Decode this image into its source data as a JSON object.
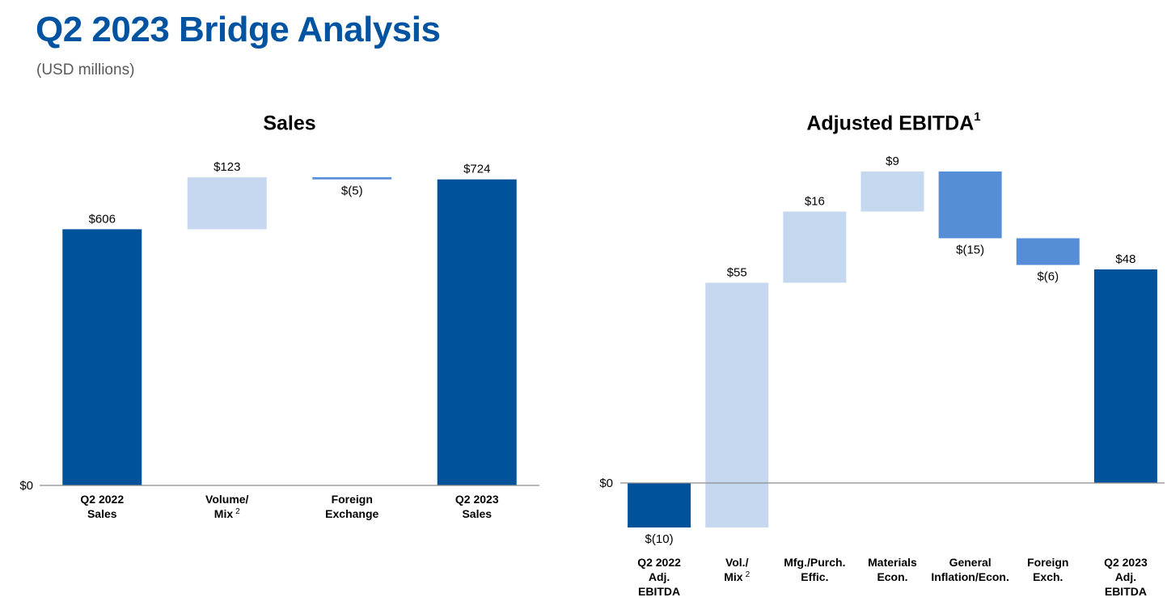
{
  "page": {
    "title": "Q2 2023 Bridge Analysis",
    "subtitle": "(USD millions)"
  },
  "colors": {
    "dark_blue": "#00529b",
    "light_blue": "#c6d8f0",
    "mid_blue": "#558ed6",
    "axis": "#8c8c8c",
    "title": "#0053a0"
  },
  "chart_data": [
    {
      "type": "bar",
      "subtype": "waterfall",
      "title": "Sales",
      "title_sup": "",
      "zero_label": "$0",
      "categories": [
        [
          "Q2 2022",
          "Sales"
        ],
        [
          "Volume/",
          "Mix"
        ],
        [
          "Foreign",
          "Exchange"
        ],
        [
          "Q2 2023",
          "Sales"
        ]
      ],
      "category_sups": [
        "",
        "2",
        "",
        ""
      ],
      "bars": [
        {
          "kind": "total",
          "value": 606,
          "label": "$606",
          "color": "dark_blue"
        },
        {
          "kind": "delta",
          "value": 123,
          "label": "$123",
          "color": "light_blue"
        },
        {
          "kind": "delta",
          "value": -5,
          "label": "$(5)",
          "color": "mid_blue"
        },
        {
          "kind": "total",
          "value": 724,
          "label": "$724",
          "color": "dark_blue"
        }
      ]
    },
    {
      "type": "bar",
      "subtype": "waterfall",
      "title": "Adjusted EBITDA",
      "title_sup": "1",
      "zero_label": "$0",
      "categories": [
        [
          "Q2 2022",
          "Adj.",
          "EBITDA"
        ],
        [
          "Vol./",
          "Mix"
        ],
        [
          "Mfg./Purch.",
          "Effic."
        ],
        [
          "Materials",
          "Econ."
        ],
        [
          "General",
          "Inflation/Econ."
        ],
        [
          "Foreign",
          "Exch."
        ],
        [
          "Q2 2023",
          "Adj.",
          "EBITDA"
        ]
      ],
      "category_sups": [
        "",
        "2",
        "",
        "",
        "",
        "",
        ""
      ],
      "bars": [
        {
          "kind": "total",
          "value": -10,
          "label": "$(10)",
          "color": "dark_blue"
        },
        {
          "kind": "delta",
          "value": 55,
          "label": "$55",
          "color": "light_blue"
        },
        {
          "kind": "delta",
          "value": 16,
          "label": "$16",
          "color": "light_blue"
        },
        {
          "kind": "delta",
          "value": 9,
          "label": "$9",
          "color": "light_blue"
        },
        {
          "kind": "delta",
          "value": -15,
          "label": "$(15)",
          "color": "mid_blue"
        },
        {
          "kind": "delta",
          "value": -6,
          "label": "$(6)",
          "color": "mid_blue"
        },
        {
          "kind": "total",
          "value": 48,
          "label": "$48",
          "color": "dark_blue"
        }
      ]
    }
  ]
}
